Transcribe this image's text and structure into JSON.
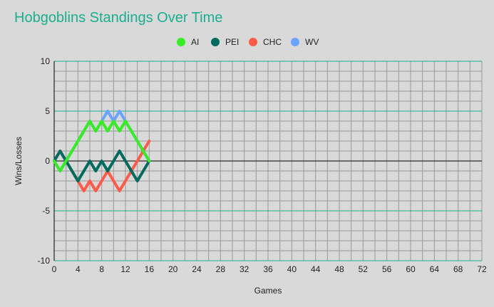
{
  "chart_data": {
    "type": "line",
    "title": "Hobgoblins Standings Over Time",
    "xlabel": "Games",
    "ylabel": "Wins/Losses",
    "xlim": [
      0,
      72
    ],
    "ylim": [
      -10,
      10
    ],
    "xticks": [
      0,
      4,
      8,
      12,
      16,
      20,
      24,
      28,
      32,
      36,
      40,
      44,
      48,
      52,
      56,
      60,
      64,
      68,
      72
    ],
    "yticks": [
      -10,
      -5,
      0,
      5,
      10
    ],
    "grid": true,
    "legend_position": "top",
    "x": [
      0,
      1,
      2,
      3,
      4,
      5,
      6,
      7,
      8,
      9,
      10,
      11,
      12,
      13,
      14,
      15,
      16
    ],
    "series": [
      {
        "name": "AI",
        "color": "#33ee22",
        "values": [
          0,
          -1,
          0,
          1,
          2,
          3,
          4,
          3,
          4,
          3,
          4,
          3,
          4,
          3,
          2,
          1,
          0
        ]
      },
      {
        "name": "PEI",
        "color": "#006b5e",
        "values": [
          0,
          1,
          0,
          -1,
          -2,
          -1,
          0,
          -1,
          0,
          -1,
          0,
          1,
          0,
          -1,
          -2,
          -1,
          0
        ]
      },
      {
        "name": "CHC",
        "color": "#ff5a48",
        "values": [
          0,
          1,
          0,
          -1,
          -2,
          -3,
          -2,
          -3,
          -2,
          -1,
          -2,
          -3,
          -2,
          -1,
          0,
          1,
          2
        ]
      },
      {
        "name": "WV",
        "color": "#6aa2ff",
        "values": [
          0,
          -1,
          0,
          1,
          2,
          3,
          4,
          3,
          4,
          5,
          4,
          5,
          4,
          3,
          2,
          1,
          0
        ]
      }
    ]
  }
}
